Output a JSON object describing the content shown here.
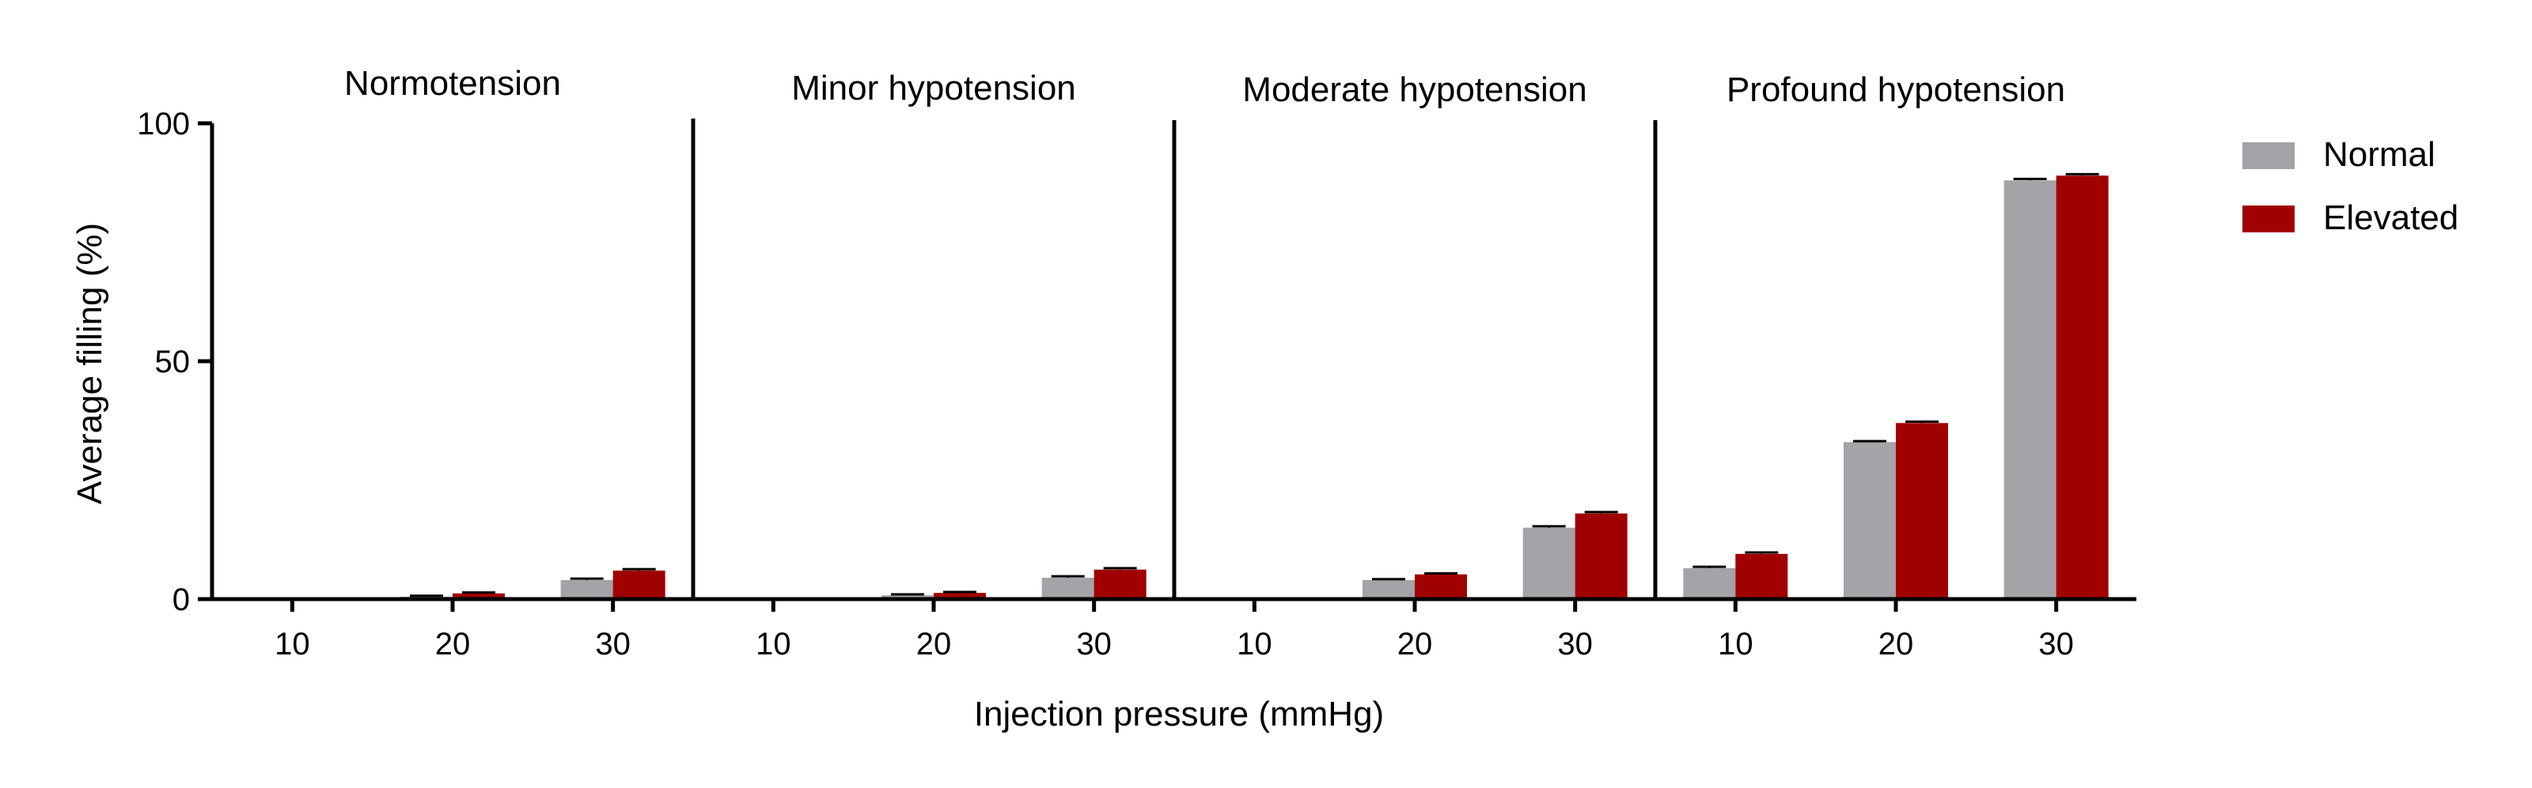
{
  "chart_data": {
    "type": "bar",
    "xlabel": "Injection pressure (mmHg)",
    "ylabel": "Average filling (%)",
    "ylim": [
      0,
      100
    ],
    "yticks": [
      0,
      50,
      100
    ],
    "categories": [
      "10",
      "20",
      "30"
    ],
    "legend": {
      "position": "right",
      "entries": [
        {
          "name": "Normal",
          "color": "#a3a3a8"
        },
        {
          "name": "Elevated",
          "color": "#a00000"
        }
      ]
    },
    "panels": [
      {
        "title": "Normotension",
        "series": [
          {
            "name": "Normal",
            "values": [
              0,
              0.5,
              4
            ],
            "errors": [
              0,
              0.2,
              0.3
            ]
          },
          {
            "name": "Elevated",
            "values": [
              0,
              1.2,
              6
            ],
            "errors": [
              0,
              0.2,
              0.3
            ]
          }
        ]
      },
      {
        "title": "Minor hypotension",
        "series": [
          {
            "name": "Normal",
            "values": [
              0,
              0.8,
              4.5
            ],
            "errors": [
              0,
              0.2,
              0.3
            ]
          },
          {
            "name": "Elevated",
            "values": [
              0,
              1.3,
              6.2
            ],
            "errors": [
              0,
              0.2,
              0.3
            ]
          }
        ]
      },
      {
        "title": "Moderate hypotension",
        "series": [
          {
            "name": "Normal",
            "values": [
              0,
              4,
              15
            ],
            "errors": [
              0,
              0.2,
              0.3
            ]
          },
          {
            "name": "Elevated",
            "values": [
              0,
              5.2,
              18
            ],
            "errors": [
              0,
              0.2,
              0.3
            ]
          }
        ]
      },
      {
        "title": "Profound hypotension",
        "series": [
          {
            "name": "Normal",
            "values": [
              6.5,
              33,
              88
            ],
            "errors": [
              0.3,
              0.2,
              0.3
            ]
          },
          {
            "name": "Elevated",
            "values": [
              9.5,
              37,
              89
            ],
            "errors": [
              0.3,
              0.3,
              0.3
            ]
          }
        ]
      }
    ]
  }
}
